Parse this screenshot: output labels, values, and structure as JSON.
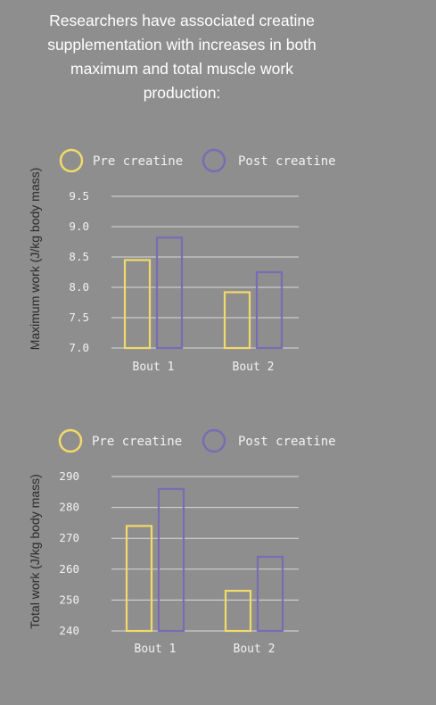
{
  "headline": {
    "lines": [
      "Researchers have associated creatine",
      "supplementation with increases in both",
      "maximum and total muscle work",
      "production:"
    ]
  },
  "colors": {
    "background": "#8e8e8e",
    "pre": "#f1da6a",
    "post": "#7a6cb4",
    "grid": "#d9d9d9",
    "axis_label": "#2b2b2b"
  },
  "chart_data": [
    {
      "type": "bar",
      "ylabel": "Maximum work (J/kg body mass)",
      "categories": [
        "Bout 1",
        "Bout 2"
      ],
      "series": [
        {
          "name": "Pre creatine",
          "values": [
            8.45,
            7.92
          ]
        },
        {
          "name": "Post creatine",
          "values": [
            8.82,
            8.25
          ]
        }
      ],
      "ylim": [
        7.0,
        9.5
      ],
      "yticks": [
        "9.5",
        "9.0",
        "8.5",
        "8.0",
        "7.5",
        "7.0"
      ],
      "grid": true,
      "legend": "top"
    },
    {
      "type": "bar",
      "ylabel": "Total work (J/kg body mass)",
      "categories": [
        "Bout 1",
        "Bout 2"
      ],
      "series": [
        {
          "name": "Pre creatine",
          "values": [
            274,
            253
          ]
        },
        {
          "name": "Post creatine",
          "values": [
            286,
            264
          ]
        }
      ],
      "ylim": [
        240,
        290
      ],
      "yticks": [
        "290",
        "280",
        "270",
        "260",
        "250",
        "240"
      ],
      "grid": true,
      "legend": "top"
    }
  ]
}
